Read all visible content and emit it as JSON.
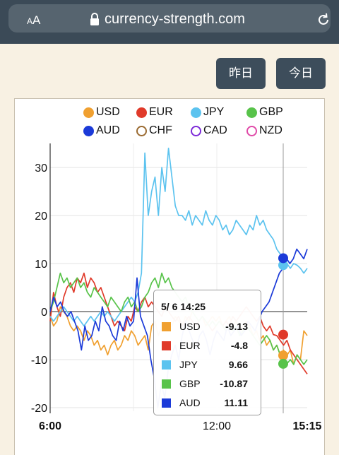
{
  "browser": {
    "aa_small": "A",
    "aa_large": "A",
    "url": "currency-strength.com"
  },
  "buttons": {
    "yesterday": "昨日",
    "today": "今日"
  },
  "legend": [
    {
      "name": "USD",
      "color": "#f0a030",
      "filled": true
    },
    {
      "name": "EUR",
      "color": "#e03a2a",
      "filled": true
    },
    {
      "name": "JPY",
      "color": "#5cc3ef",
      "filled": true
    },
    {
      "name": "GBP",
      "color": "#58c34a",
      "filled": true
    },
    {
      "name": "AUD",
      "color": "#1b3ad8",
      "filled": true
    },
    {
      "name": "CHF",
      "color": "#9a6a30",
      "filled": false
    },
    {
      "name": "CAD",
      "color": "#7d2bd8",
      "filled": false
    },
    {
      "name": "NZD",
      "color": "#e04aa8",
      "filled": false
    }
  ],
  "tooltip": {
    "title": "5/ 6 14:25",
    "rows": [
      {
        "name": "USD",
        "value": "-9.13",
        "color": "#f0a030"
      },
      {
        "name": "EUR",
        "value": "-4.8",
        "color": "#e03a2a"
      },
      {
        "name": "JPY",
        "value": "9.66",
        "color": "#5cc3ef"
      },
      {
        "name": "GBP",
        "value": "-10.87",
        "color": "#58c34a"
      },
      {
        "name": "AUD",
        "value": "11.11",
        "color": "#1b3ad8"
      }
    ]
  },
  "chart_data": {
    "type": "line",
    "x_ticks": [
      "6:00",
      "12:00",
      "15:15"
    ],
    "y_ticks": [
      "30",
      "20",
      "10",
      "0",
      "-10",
      "-20"
    ],
    "ylim": [
      -21,
      35
    ],
    "x_range": [
      "6:00",
      "15:15"
    ],
    "cursor_time": "14:25",
    "grid": true,
    "legend_position": "top",
    "series": [
      {
        "name": "USD",
        "color": "#f0a030",
        "values": [
          -1,
          -3,
          -2,
          1,
          0,
          -1,
          -3,
          -4,
          -3,
          -4,
          -6,
          -4,
          -5,
          -7,
          -6,
          -8,
          -7,
          -9,
          -7,
          -6,
          -8,
          -7,
          -5,
          -6,
          -4,
          -5,
          -7,
          -6,
          -5,
          -8,
          -3,
          -2,
          -5,
          -3,
          -2,
          -4,
          -3,
          -1,
          -2,
          -3,
          -1,
          -2,
          0,
          -1,
          -2,
          -1,
          -3,
          -2,
          -1,
          -2,
          -1,
          -3,
          -2,
          -1,
          -3,
          -2,
          -4,
          -3,
          -2,
          -3,
          -5,
          -4,
          -6,
          -5,
          -7,
          -6,
          -8,
          -7,
          -9,
          -8,
          -9.13,
          -8,
          -11,
          -9,
          -10,
          -4,
          -5
        ]
      },
      {
        "name": "EUR",
        "color": "#e03a2a",
        "values": [
          -2,
          4,
          1,
          -1,
          3,
          5,
          6,
          4,
          7,
          6,
          8,
          5,
          7,
          6,
          4,
          5,
          3,
          1,
          -1,
          -3,
          -2,
          -3,
          -4,
          -1,
          -2,
          1,
          0,
          2,
          3,
          1,
          2,
          1,
          0,
          -1,
          1,
          0,
          -1,
          -2,
          -1,
          -3,
          -2,
          -1,
          -2,
          -3,
          -2,
          -1,
          -2,
          -3,
          -4,
          -3,
          -2,
          -3,
          -2,
          -3,
          -1,
          -2,
          -1,
          0,
          1,
          0,
          -1,
          -2,
          -1,
          -3,
          -4,
          -3,
          -4.8,
          -5,
          -6,
          -7,
          -6,
          -8,
          -9,
          -10,
          -11,
          -12,
          -13
        ]
      },
      {
        "name": "JPY",
        "color": "#5cc3ef",
        "values": [
          -1,
          -2,
          -1,
          0,
          1,
          0,
          -1,
          -2,
          -1,
          -2,
          -3,
          -2,
          -1,
          -2,
          -1,
          0,
          -1,
          0,
          -1,
          -2,
          -1,
          0,
          1,
          2,
          3,
          2,
          4,
          8,
          33,
          20,
          25,
          28,
          20,
          30,
          25,
          34,
          28,
          22,
          20,
          20,
          19,
          21,
          18,
          20,
          19,
          18,
          21,
          19,
          18,
          20,
          19,
          17,
          18,
          16,
          17,
          19,
          18,
          17,
          16,
          18,
          17,
          20,
          18,
          19,
          17,
          16,
          15,
          13,
          12,
          11,
          10,
          9,
          10,
          9.66,
          9,
          8,
          9
        ]
      },
      {
        "name": "GBP",
        "color": "#58c34a",
        "values": [
          0,
          2,
          5,
          8,
          6,
          7,
          5,
          6,
          7,
          5,
          6,
          4,
          3,
          5,
          4,
          3,
          2,
          1,
          3,
          2,
          1,
          0,
          2,
          3,
          1,
          2,
          0,
          1,
          3,
          4,
          6,
          7,
          5,
          8,
          6,
          7,
          5,
          4,
          3,
          2,
          3,
          1,
          0,
          -1,
          -2,
          -1,
          -2,
          -3,
          -2,
          -3,
          -2,
          -3,
          -4,
          -3,
          -4,
          -3,
          -5,
          -4,
          -3,
          -4,
          -5,
          -6,
          -7,
          -6,
          -5,
          -6,
          -8,
          -7,
          -9,
          -10,
          -10.87,
          -10,
          -11,
          -9,
          -10,
          -11,
          -10
        ]
      },
      {
        "name": "AUD",
        "color": "#1b3ad8",
        "values": [
          0,
          3,
          1,
          2,
          0,
          -1,
          0,
          -2,
          -4,
          -8,
          -3,
          -6,
          -5,
          -2,
          -4,
          1,
          -2,
          -3,
          -5,
          -6,
          -2,
          -4,
          -1,
          -3,
          -2,
          7,
          -1,
          -3,
          -5,
          -10,
          -14,
          -20,
          -15,
          -18,
          -12,
          -9,
          -7,
          -10,
          -5,
          -2,
          -4,
          -6,
          -8,
          -5,
          -4,
          -6,
          -9,
          -6,
          -4,
          -5,
          -6,
          -3,
          -5,
          -4,
          -3,
          -5,
          -4,
          -2,
          -3,
          -4,
          -2,
          0,
          1,
          2,
          4,
          6,
          8,
          9,
          11.11,
          10,
          11,
          13,
          12,
          11,
          13
        ]
      }
    ]
  }
}
